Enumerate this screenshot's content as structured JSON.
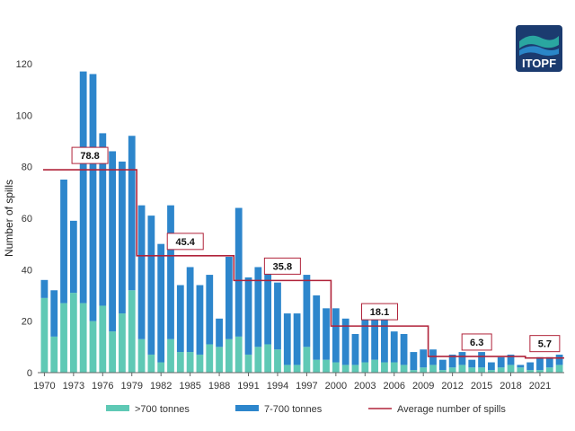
{
  "brand": {
    "logo_text": "ITOPF",
    "colors": {
      "navy": "#1b3b6f",
      "teal": "#2aa6a0",
      "blue": "#2a86c8"
    }
  },
  "chart_data": {
    "type": "bar",
    "stacked": true,
    "ylabel": "Number of spills",
    "ylim": [
      0,
      120
    ],
    "yticks": [
      0,
      20,
      40,
      60,
      80,
      100,
      120
    ],
    "x": [
      1970,
      1971,
      1972,
      1973,
      1974,
      1975,
      1976,
      1977,
      1978,
      1979,
      1980,
      1981,
      1982,
      1983,
      1984,
      1985,
      1986,
      1987,
      1988,
      1989,
      1990,
      1991,
      1992,
      1993,
      1994,
      1995,
      1996,
      1997,
      1998,
      1999,
      2000,
      2001,
      2002,
      2003,
      2004,
      2005,
      2006,
      2007,
      2008,
      2009,
      2010,
      2011,
      2012,
      2013,
      2014,
      2015,
      2016,
      2017,
      2018,
      2019,
      2020,
      2021,
      2022,
      2023
    ],
    "xtick_labels": [
      "1970",
      "1973",
      "1976",
      "1979",
      "1982",
      "1985",
      "1988",
      "1991",
      "1994",
      "1997",
      "2000",
      "2003",
      "2006",
      "2009",
      "2012",
      "2015",
      "2018",
      "2021"
    ],
    "series": [
      {
        "name": ">700 tonnes",
        "color": "#5fc9b5",
        "values": [
          29,
          14,
          27,
          31,
          27,
          20,
          26,
          16,
          23,
          32,
          13,
          7,
          4,
          13,
          8,
          8,
          7,
          11,
          10,
          13,
          14,
          7,
          10,
          11,
          9,
          3,
          3,
          10,
          5,
          5,
          4,
          3,
          3,
          4,
          5,
          4,
          4,
          3,
          1,
          2,
          3,
          1,
          2,
          3,
          2,
          2,
          1,
          2,
          3,
          2,
          1,
          1,
          2,
          3
        ]
      },
      {
        "name": "7-700 tonnes",
        "color": "#2d86cc",
        "values": [
          7,
          18,
          48,
          28,
          90,
          96,
          67,
          70,
          59,
          60,
          52,
          54,
          46,
          52,
          26,
          33,
          27,
          27,
          11,
          32,
          50,
          30,
          31,
          31,
          26,
          20,
          20,
          28,
          25,
          20,
          21,
          18,
          12,
          19,
          20,
          21,
          12,
          12,
          7,
          7,
          6,
          4,
          5,
          5,
          3,
          6,
          3,
          4,
          4,
          1,
          3,
          5,
          4,
          4
        ]
      }
    ],
    "average": {
      "name": "Average number of spills",
      "color": "#b0233a",
      "segments": [
        {
          "label": "78.8",
          "value": 78.8,
          "start": 1970,
          "end": 1979
        },
        {
          "label": "45.4",
          "value": 45.4,
          "start": 1980,
          "end": 1989
        },
        {
          "label": "35.8",
          "value": 35.8,
          "start": 1990,
          "end": 1999
        },
        {
          "label": "18.1",
          "value": 18.1,
          "start": 2000,
          "end": 2009
        },
        {
          "label": "6.3",
          "value": 6.3,
          "start": 2010,
          "end": 2019
        },
        {
          "label": "5.7",
          "value": 5.7,
          "start": 2020,
          "end": 2023
        }
      ]
    },
    "legend": [
      {
        "label": ">700 tonnes",
        "kind": "swatch",
        "color": "#5fc9b5"
      },
      {
        "label": "7-700 tonnes",
        "kind": "swatch",
        "color": "#2d86cc"
      },
      {
        "label": "Average number of spills",
        "kind": "line",
        "color": "#b0233a"
      }
    ],
    "legend_position": "bottom"
  }
}
